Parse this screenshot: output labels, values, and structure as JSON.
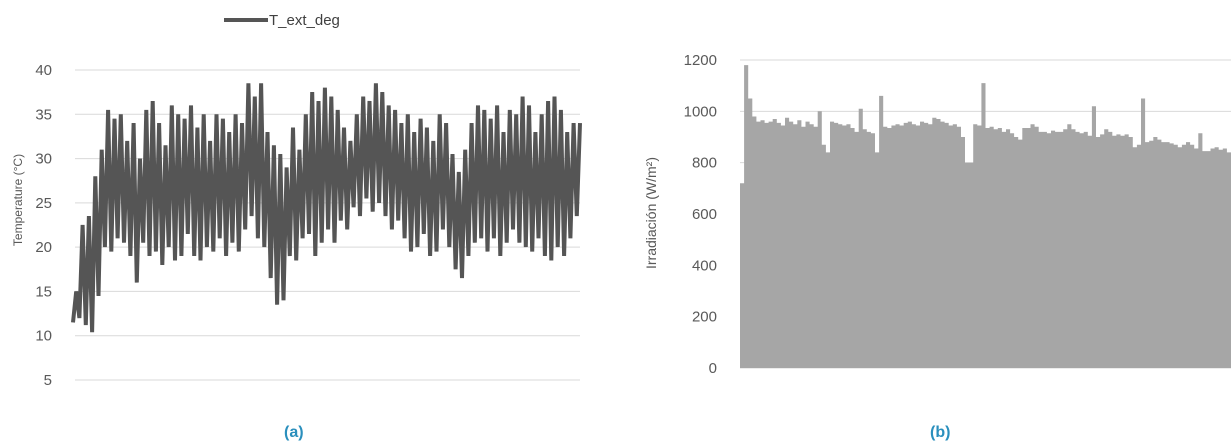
{
  "chart_data": [
    {
      "type": "line",
      "xlabel": "",
      "ylabel": "Temperature (°C)",
      "ylim": [
        5,
        40
      ],
      "yticks": [
        "5",
        "10",
        "15",
        "20",
        "25",
        "30",
        "35",
        "40"
      ],
      "grid": true,
      "legend": "top",
      "series": [
        {
          "name": "T_ext_deg",
          "color": "#555555",
          "values": [
            11.5,
            15.0,
            12.0,
            22.5,
            11.2,
            23.5,
            10.4,
            28.0,
            14.5,
            31.0,
            20.0,
            35.5,
            19.5,
            34.5,
            21.0,
            35.0,
            20.5,
            32.0,
            19.0,
            34.0,
            16.0,
            30.0,
            20.5,
            35.5,
            19.0,
            36.5,
            19.5,
            34.0,
            18.0,
            31.5,
            20.0,
            36.0,
            18.5,
            35.0,
            19.0,
            34.5,
            21.5,
            36.0,
            19.0,
            33.5,
            18.5,
            35.0,
            20.0,
            32.0,
            19.5,
            35.0,
            21.0,
            34.5,
            19.0,
            33.0,
            20.5,
            35.0,
            19.5,
            34.0,
            22.0,
            38.5,
            23.5,
            37.0,
            21.0,
            38.5,
            20.0,
            33.0,
            16.5,
            31.5,
            13.5,
            30.5,
            14.0,
            29.0,
            19.0,
            33.5,
            18.5,
            31.0,
            21.0,
            35.0,
            21.5,
            37.5,
            19.0,
            36.5,
            20.5,
            38.0,
            22.0,
            37.0,
            20.5,
            35.5,
            23.0,
            33.5,
            22.0,
            32.0,
            24.5,
            35.0,
            23.5,
            37.0,
            25.5,
            36.5,
            24.0,
            38.5,
            25.0,
            37.5,
            23.5,
            36.0,
            22.0,
            35.5,
            23.0,
            34.0,
            21.0,
            35.0,
            19.5,
            33.0,
            20.0,
            34.5,
            21.5,
            33.5,
            19.0,
            32.0,
            19.5,
            35.0,
            22.0,
            34.0,
            20.0,
            30.5,
            17.5,
            28.5,
            16.5,
            31.0,
            19.0,
            34.0,
            20.5,
            36.0,
            21.0,
            35.5,
            19.5,
            34.5,
            21.0,
            36.0,
            19.0,
            33.0,
            20.5,
            35.5,
            22.0,
            35.0,
            20.5,
            37.0,
            20.0,
            36.0,
            19.5,
            33.0,
            21.0,
            35.0,
            19.0,
            36.5,
            18.5,
            37.0,
            20.0,
            35.5,
            19.0,
            33.0,
            21.0,
            34.0,
            23.5,
            34.0
          ]
        }
      ]
    },
    {
      "type": "area",
      "xlabel": "",
      "ylabel": "Irradiación (W/m²)",
      "ylim": [
        0,
        1200
      ],
      "yticks": [
        "0",
        "200",
        "400",
        "600",
        "800",
        "1000",
        "1200"
      ],
      "grid": true,
      "series": [
        {
          "color": "#a6a6a6",
          "values": [
            720,
            1180,
            1050,
            980,
            960,
            965,
            955,
            960,
            970,
            955,
            945,
            975,
            960,
            950,
            965,
            940,
            960,
            950,
            940,
            1000,
            870,
            840,
            960,
            955,
            950,
            945,
            950,
            935,
            920,
            1010,
            930,
            920,
            915,
            840,
            1060,
            940,
            935,
            945,
            950,
            945,
            955,
            960,
            950,
            945,
            960,
            955,
            950,
            975,
            970,
            960,
            955,
            945,
            950,
            940,
            900,
            800,
            800,
            950,
            945,
            1110,
            935,
            940,
            930,
            935,
            920,
            930,
            915,
            900,
            890,
            935,
            935,
            950,
            940,
            920,
            920,
            915,
            925,
            920,
            920,
            930,
            950,
            930,
            920,
            915,
            920,
            905,
            1020,
            900,
            910,
            930,
            920,
            905,
            910,
            905,
            910,
            900,
            860,
            870,
            1050,
            880,
            885,
            900,
            890,
            880,
            880,
            875,
            870,
            860,
            870,
            880,
            870,
            855,
            915,
            845,
            845,
            855,
            860,
            850,
            855,
            840
          ]
        }
      ]
    }
  ],
  "captions": {
    "a": "(a)",
    "b": "(b)"
  }
}
